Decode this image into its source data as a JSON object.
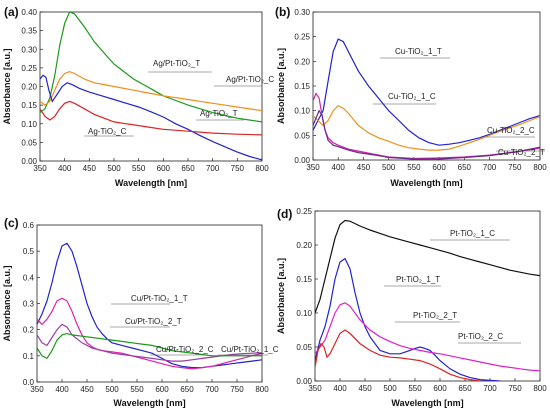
{
  "chart_data": [
    {
      "panel": "(a)",
      "type": "line",
      "xlabel": "Wavelength [nm]",
      "ylabel": "Absorbance [a.u.]",
      "xlim": [
        350,
        800
      ],
      "ylim": [
        0,
        0.4
      ],
      "xticks": [
        "350",
        "400",
        "450",
        "500",
        "550",
        "600",
        "650",
        "700",
        "750",
        "800"
      ],
      "yticks": [
        "0.00",
        "0.05",
        "0.10",
        "0.15",
        "0.20",
        "0.25",
        "0.30",
        "0.35",
        "0.40"
      ],
      "series": [
        {
          "name": "Ag/Pt-TiO₂_T",
          "color": "#1a9a1a",
          "x": [
            350,
            360,
            370,
            380,
            390,
            400,
            410,
            420,
            440,
            460,
            480,
            500,
            520,
            540,
            560,
            580,
            600,
            620,
            650,
            700,
            750,
            800
          ],
          "y": [
            0.13,
            0.14,
            0.17,
            0.23,
            0.31,
            0.37,
            0.4,
            0.395,
            0.36,
            0.32,
            0.29,
            0.26,
            0.24,
            0.22,
            0.205,
            0.19,
            0.175,
            0.165,
            0.15,
            0.13,
            0.115,
            0.105
          ]
        },
        {
          "name": "Ag/Pt-TiO₂_C",
          "color": "#f0901a",
          "x": [
            350,
            360,
            370,
            380,
            390,
            400,
            410,
            420,
            440,
            460,
            480,
            500,
            520,
            540,
            560,
            580,
            600,
            650,
            700,
            750,
            800
          ],
          "y": [
            0.16,
            0.15,
            0.16,
            0.19,
            0.22,
            0.235,
            0.24,
            0.235,
            0.22,
            0.21,
            0.205,
            0.2,
            0.195,
            0.19,
            0.185,
            0.18,
            0.175,
            0.165,
            0.155,
            0.145,
            0.135
          ]
        },
        {
          "name": "Ag-TiO₂_T",
          "color": "#2222cc",
          "x": [
            350,
            356,
            362,
            368,
            375,
            385,
            395,
            405,
            415,
            430,
            450,
            475,
            500,
            525,
            550,
            575,
            600,
            625,
            650,
            675,
            700,
            725,
            750,
            775,
            800
          ],
          "y": [
            0.22,
            0.23,
            0.225,
            0.19,
            0.16,
            0.18,
            0.2,
            0.21,
            0.205,
            0.195,
            0.185,
            0.175,
            0.165,
            0.155,
            0.145,
            0.132,
            0.118,
            0.1,
            0.085,
            0.068,
            0.052,
            0.038,
            0.024,
            0.012,
            0.003
          ]
        },
        {
          "name": "Ag-TiO₂_C",
          "color": "#dd2222",
          "x": [
            350,
            360,
            370,
            380,
            390,
            400,
            410,
            420,
            440,
            460,
            480,
            500,
            525,
            550,
            575,
            600,
            650,
            700,
            750,
            800
          ],
          "y": [
            0.14,
            0.12,
            0.11,
            0.12,
            0.14,
            0.155,
            0.16,
            0.155,
            0.14,
            0.125,
            0.115,
            0.105,
            0.1,
            0.095,
            0.09,
            0.085,
            0.08,
            0.075,
            0.072,
            0.07
          ]
        }
      ],
      "annotations": [
        "Ag/Pt-TiO₂_T",
        "Ag/Pt-TiO₂_C",
        "Ag-TiO₂_T",
        "Ag-TiO₂_C"
      ]
    },
    {
      "panel": "(b)",
      "type": "line",
      "xlabel": "Wavelength [nm]",
      "ylabel": "Absorbance [a.u.]",
      "xlim": [
        350,
        800
      ],
      "ylim": [
        0,
        0.3
      ],
      "xticks": [
        "350",
        "400",
        "450",
        "500",
        "550",
        "600",
        "650",
        "700",
        "750",
        "800"
      ],
      "yticks": [
        "0.00",
        "0.05",
        "0.10",
        "0.15",
        "0.20",
        "0.25",
        "0.30"
      ],
      "series": [
        {
          "name": "Cu-TiO₂_1_T",
          "color": "#2222cc",
          "x": [
            350,
            360,
            370,
            380,
            390,
            400,
            410,
            420,
            440,
            460,
            480,
            500,
            520,
            540,
            560,
            580,
            600,
            620,
            640,
            660,
            680,
            700,
            720,
            740,
            760,
            780,
            800
          ],
          "y": [
            0.06,
            0.08,
            0.1,
            0.16,
            0.22,
            0.245,
            0.24,
            0.22,
            0.18,
            0.15,
            0.125,
            0.1,
            0.08,
            0.06,
            0.045,
            0.035,
            0.03,
            0.032,
            0.035,
            0.04,
            0.045,
            0.052,
            0.06,
            0.068,
            0.076,
            0.084,
            0.09
          ]
        },
        {
          "name": "Cu-TiO₂_1_C",
          "color": "#f0901a",
          "x": [
            350,
            360,
            370,
            380,
            390,
            400,
            410,
            420,
            440,
            460,
            480,
            500,
            520,
            540,
            560,
            580,
            600,
            620,
            640,
            660,
            680,
            700,
            720,
            740,
            760,
            780,
            800
          ],
          "y": [
            0.09,
            0.08,
            0.07,
            0.08,
            0.1,
            0.11,
            0.105,
            0.095,
            0.07,
            0.055,
            0.045,
            0.038,
            0.03,
            0.025,
            0.022,
            0.02,
            0.02,
            0.022,
            0.028,
            0.035,
            0.042,
            0.05,
            0.058,
            0.065,
            0.072,
            0.08,
            0.088
          ]
        },
        {
          "name": "Cu-TiO₂_2_C",
          "color": "#cc22aa",
          "x": [
            350,
            356,
            362,
            368,
            374,
            380,
            390,
            400,
            420,
            440,
            460,
            480,
            500,
            550,
            600,
            650,
            700,
            750,
            800
          ],
          "y": [
            0.12,
            0.135,
            0.125,
            0.09,
            0.06,
            0.045,
            0.035,
            0.03,
            0.022,
            0.018,
            0.014,
            0.01,
            0.006,
            0.003,
            0.004,
            0.006,
            0.01,
            0.016,
            0.024
          ]
        },
        {
          "name": "Cu-TiO₂_2_T",
          "color": "#6a2a8a",
          "x": [
            350,
            356,
            362,
            368,
            374,
            380,
            390,
            400,
            420,
            440,
            460,
            480,
            500,
            550,
            600,
            650,
            700,
            750,
            800
          ],
          "y": [
            0.07,
            0.085,
            0.1,
            0.09,
            0.06,
            0.04,
            0.03,
            0.027,
            0.02,
            0.015,
            0.012,
            0.009,
            0.005,
            0.002,
            0.002,
            0.005,
            0.009,
            0.016,
            0.026
          ]
        }
      ],
      "annotations": [
        "Cu-TiO₂_1_T",
        "Cu-TiO₂_1_C",
        "Cu-TiO₂_2_C",
        "Cu-TiO₂_2_T"
      ]
    },
    {
      "panel": "(c)",
      "type": "line",
      "xlabel": "Wavelength [nm]",
      "ylabel": "Absorbance [a.u.]",
      "xlim": [
        350,
        800
      ],
      "ylim": [
        0,
        0.6
      ],
      "xticks": [
        "350",
        "400",
        "450",
        "500",
        "550",
        "600",
        "650",
        "700",
        "750",
        "800"
      ],
      "yticks": [
        "0.0",
        "0.1",
        "0.2",
        "0.3",
        "0.4",
        "0.5",
        "0.6"
      ],
      "series": [
        {
          "name": "Cu/Pt-TiO₂_1_T",
          "color": "#2222cc",
          "x": [
            350,
            360,
            370,
            380,
            390,
            400,
            410,
            420,
            430,
            440,
            450,
            460,
            470,
            480,
            490,
            500,
            520,
            540,
            560,
            580,
            600,
            620,
            640,
            660,
            680,
            700,
            720,
            740,
            760,
            780,
            800
          ],
          "y": [
            0.22,
            0.26,
            0.31,
            0.38,
            0.46,
            0.52,
            0.53,
            0.5,
            0.44,
            0.37,
            0.3,
            0.25,
            0.21,
            0.185,
            0.165,
            0.15,
            0.14,
            0.13,
            0.12,
            0.11,
            0.09,
            0.07,
            0.06,
            0.055,
            0.055,
            0.06,
            0.065,
            0.07,
            0.075,
            0.08,
            0.085
          ]
        },
        {
          "name": "Cu/Pt-TiO₂_2_T",
          "color": "#dd22aa",
          "x": [
            350,
            360,
            370,
            380,
            390,
            400,
            410,
            420,
            430,
            440,
            450,
            460,
            470,
            480,
            500,
            520,
            540,
            560,
            580,
            600,
            620,
            640,
            660,
            680,
            700,
            720,
            740,
            760,
            780,
            800
          ],
          "y": [
            0.24,
            0.22,
            0.24,
            0.27,
            0.31,
            0.32,
            0.31,
            0.27,
            0.22,
            0.18,
            0.15,
            0.135,
            0.125,
            0.12,
            0.115,
            0.11,
            0.1,
            0.09,
            0.08,
            0.07,
            0.06,
            0.055,
            0.05,
            0.055,
            0.06,
            0.07,
            0.08,
            0.09,
            0.1,
            0.11
          ]
        },
        {
          "name": "Cu/Pt-TiO₂_1_C",
          "color": "#9a3aaa",
          "x": [
            350,
            360,
            370,
            380,
            390,
            400,
            410,
            420,
            440,
            460,
            480,
            500,
            520,
            540,
            560,
            580,
            600,
            620,
            640,
            660,
            680,
            700,
            720,
            740,
            760,
            780,
            800
          ],
          "y": [
            0.18,
            0.15,
            0.14,
            0.17,
            0.2,
            0.22,
            0.21,
            0.18,
            0.15,
            0.13,
            0.12,
            0.11,
            0.105,
            0.1,
            0.095,
            0.09,
            0.085,
            0.08,
            0.08,
            0.085,
            0.09,
            0.095,
            0.1,
            0.105,
            0.108,
            0.11,
            0.112
          ]
        },
        {
          "name": "Cu/Pt-TiO₂_2_C",
          "color": "#1a9a1a",
          "x": [
            350,
            360,
            370,
            380,
            390,
            400,
            410,
            420,
            440,
            460,
            480,
            500,
            520,
            540,
            560,
            580,
            600,
            620,
            640,
            660,
            680,
            700,
            720,
            740,
            760,
            780,
            800
          ],
          "y": [
            0.13,
            0.1,
            0.09,
            0.12,
            0.16,
            0.18,
            0.185,
            0.18,
            0.175,
            0.17,
            0.165,
            0.16,
            0.155,
            0.15,
            0.145,
            0.14,
            0.13,
            0.12,
            0.115,
            0.11,
            0.105,
            0.1,
            0.1,
            0.1,
            0.1,
            0.1,
            0.1
          ]
        }
      ],
      "annotations": [
        "Cu/Pt-TiO₂_1_T",
        "Cu/Pt-TiO₂_2_T",
        "Cu/Pt-TiO₂_2_C",
        "Cu/Pt-TiO₂_1_C"
      ]
    },
    {
      "panel": "(d)",
      "type": "line",
      "xlabel": "Wavelength [nm]",
      "ylabel": "Absorbance [a.u.]",
      "xlim": [
        350,
        800
      ],
      "ylim": [
        0,
        0.25
      ],
      "xticks": [
        "350",
        "400",
        "450",
        "500",
        "550",
        "600",
        "650",
        "700",
        "750",
        "800"
      ],
      "yticks": [
        "0.00",
        "0.05",
        "0.10",
        "0.15",
        "0.20",
        "0.25"
      ],
      "series": [
        {
          "name": "Pt-TiO₂_1_C",
          "color": "#111111",
          "x": [
            350,
            360,
            370,
            380,
            390,
            400,
            410,
            420,
            440,
            460,
            480,
            500,
            520,
            540,
            560,
            580,
            600,
            620,
            640,
            660,
            680,
            700,
            720,
            740,
            760,
            780,
            800
          ],
          "y": [
            0.1,
            0.12,
            0.15,
            0.18,
            0.21,
            0.23,
            0.236,
            0.235,
            0.228,
            0.222,
            0.217,
            0.212,
            0.208,
            0.204,
            0.2,
            0.196,
            0.192,
            0.188,
            0.183,
            0.179,
            0.175,
            0.171,
            0.167,
            0.163,
            0.16,
            0.157,
            0.155
          ]
        },
        {
          "name": "Pt-TiO₂_1_T",
          "color": "#2222cc",
          "x": [
            350,
            360,
            370,
            380,
            390,
            400,
            410,
            420,
            430,
            440,
            450,
            460,
            470,
            480,
            500,
            520,
            540,
            550,
            560,
            570,
            580,
            590,
            600,
            620,
            640,
            660,
            680,
            700,
            720
          ],
          "y": [
            0.03,
            0.06,
            0.08,
            0.11,
            0.15,
            0.175,
            0.18,
            0.165,
            0.13,
            0.1,
            0.08,
            0.065,
            0.055,
            0.045,
            0.04,
            0.04,
            0.045,
            0.048,
            0.05,
            0.048,
            0.045,
            0.038,
            0.03,
            0.018,
            0.01,
            0.005,
            0.002,
            0.001,
            0
          ]
        },
        {
          "name": "Pt-TiO₂_2_T",
          "color": "#dd22cc",
          "x": [
            350,
            360,
            370,
            380,
            390,
            400,
            410,
            420,
            440,
            460,
            480,
            500,
            520,
            540,
            560,
            580,
            600,
            620,
            640,
            660,
            680,
            700,
            720,
            740,
            760,
            780,
            800
          ],
          "y": [
            0.04,
            0.05,
            0.06,
            0.08,
            0.1,
            0.112,
            0.115,
            0.11,
            0.09,
            0.075,
            0.065,
            0.058,
            0.052,
            0.048,
            0.045,
            0.042,
            0.04,
            0.037,
            0.034,
            0.031,
            0.028,
            0.025,
            0.022,
            0.02,
            0.018,
            0.016,
            0.015
          ]
        },
        {
          "name": "Pt-TiO₂_2_C",
          "color": "#dd2222",
          "x": [
            350,
            356,
            362,
            368,
            374,
            380,
            390,
            400,
            410,
            420,
            440,
            460,
            480,
            500,
            520,
            540,
            560,
            580,
            600,
            620,
            640,
            660,
            680
          ],
          "y": [
            0.02,
            0.045,
            0.055,
            0.05,
            0.035,
            0.04,
            0.055,
            0.07,
            0.075,
            0.07,
            0.055,
            0.045,
            0.038,
            0.035,
            0.034,
            0.032,
            0.03,
            0.025,
            0.018,
            0.01,
            0.005,
            0.002,
            0
          ]
        }
      ],
      "annotations": [
        "Pt-TiO₂_1_C",
        "Pt-TiO₂_1_T",
        "Pt-TiO₂_2_T",
        "Pt-TiO₂_2_C"
      ]
    }
  ]
}
